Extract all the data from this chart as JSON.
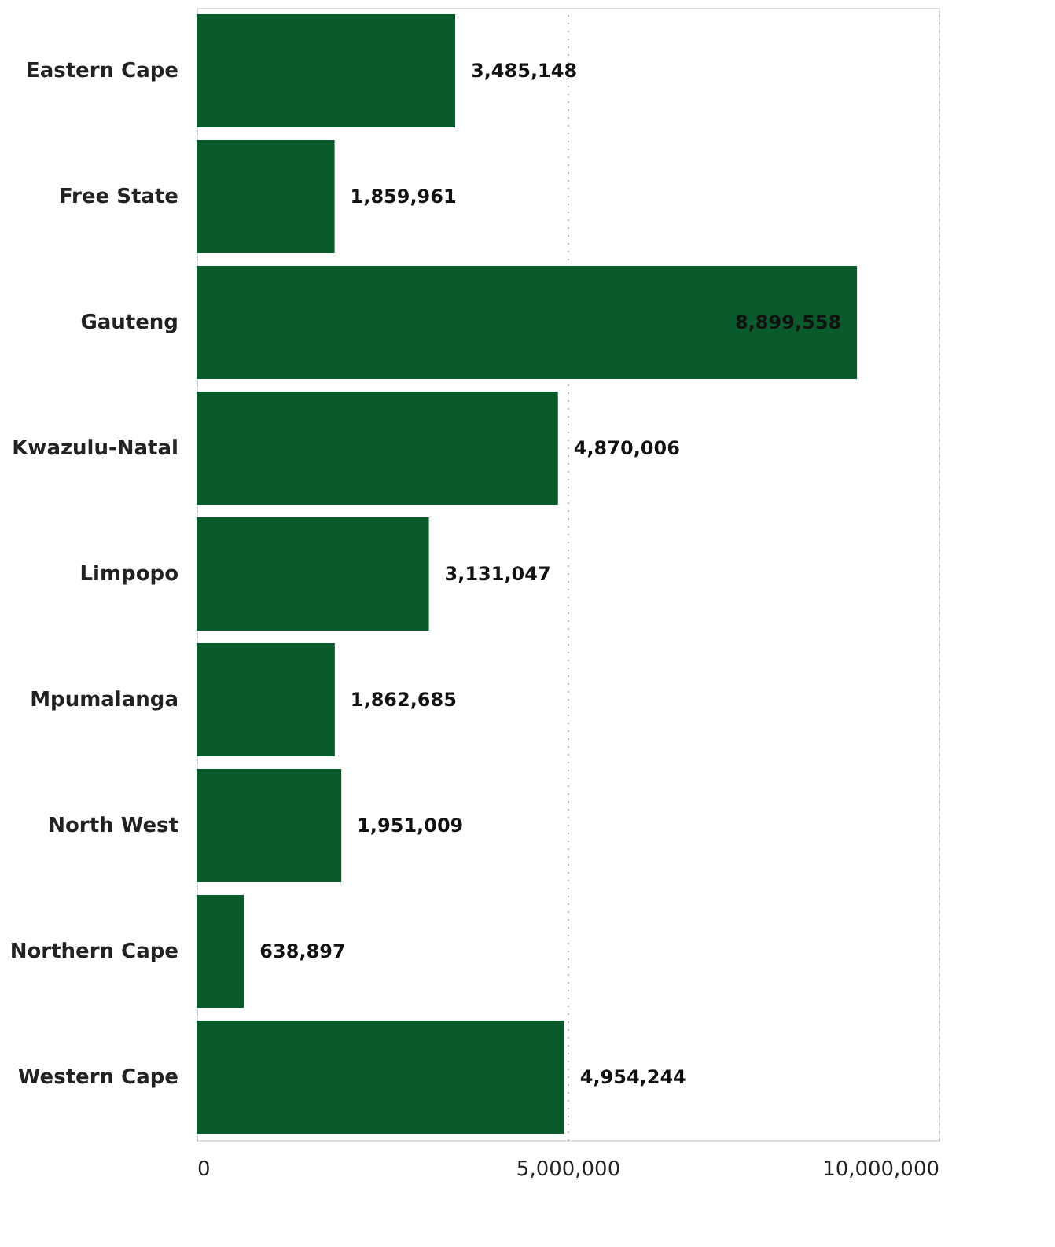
{
  "chart_data": {
    "type": "bar",
    "orientation": "horizontal",
    "categories": [
      "Eastern Cape",
      "Free State",
      "Gauteng",
      "Kwazulu-Natal",
      "Limpopo",
      "Mpumalanga",
      "North West",
      "Northern Cape",
      "Western Cape"
    ],
    "values": [
      3485148,
      1859961,
      8899558,
      4870006,
      3131047,
      1862685,
      1951009,
      638897,
      4954244
    ],
    "value_labels": [
      "3,485,148",
      "1,859,961",
      "8,899,558",
      "4,870,006",
      "3,131,047",
      "1,862,685",
      "1,951,009",
      "638,897",
      "4,954,244"
    ],
    "color": "#0b5a2c",
    "xlim": [
      0,
      10000000
    ],
    "xticks": [
      {
        "value": 0,
        "label": "0"
      },
      {
        "value": 5000000,
        "label": "5,000,000"
      },
      {
        "value": 10000000,
        "label": "10,000,000"
      }
    ],
    "grid": "x"
  }
}
